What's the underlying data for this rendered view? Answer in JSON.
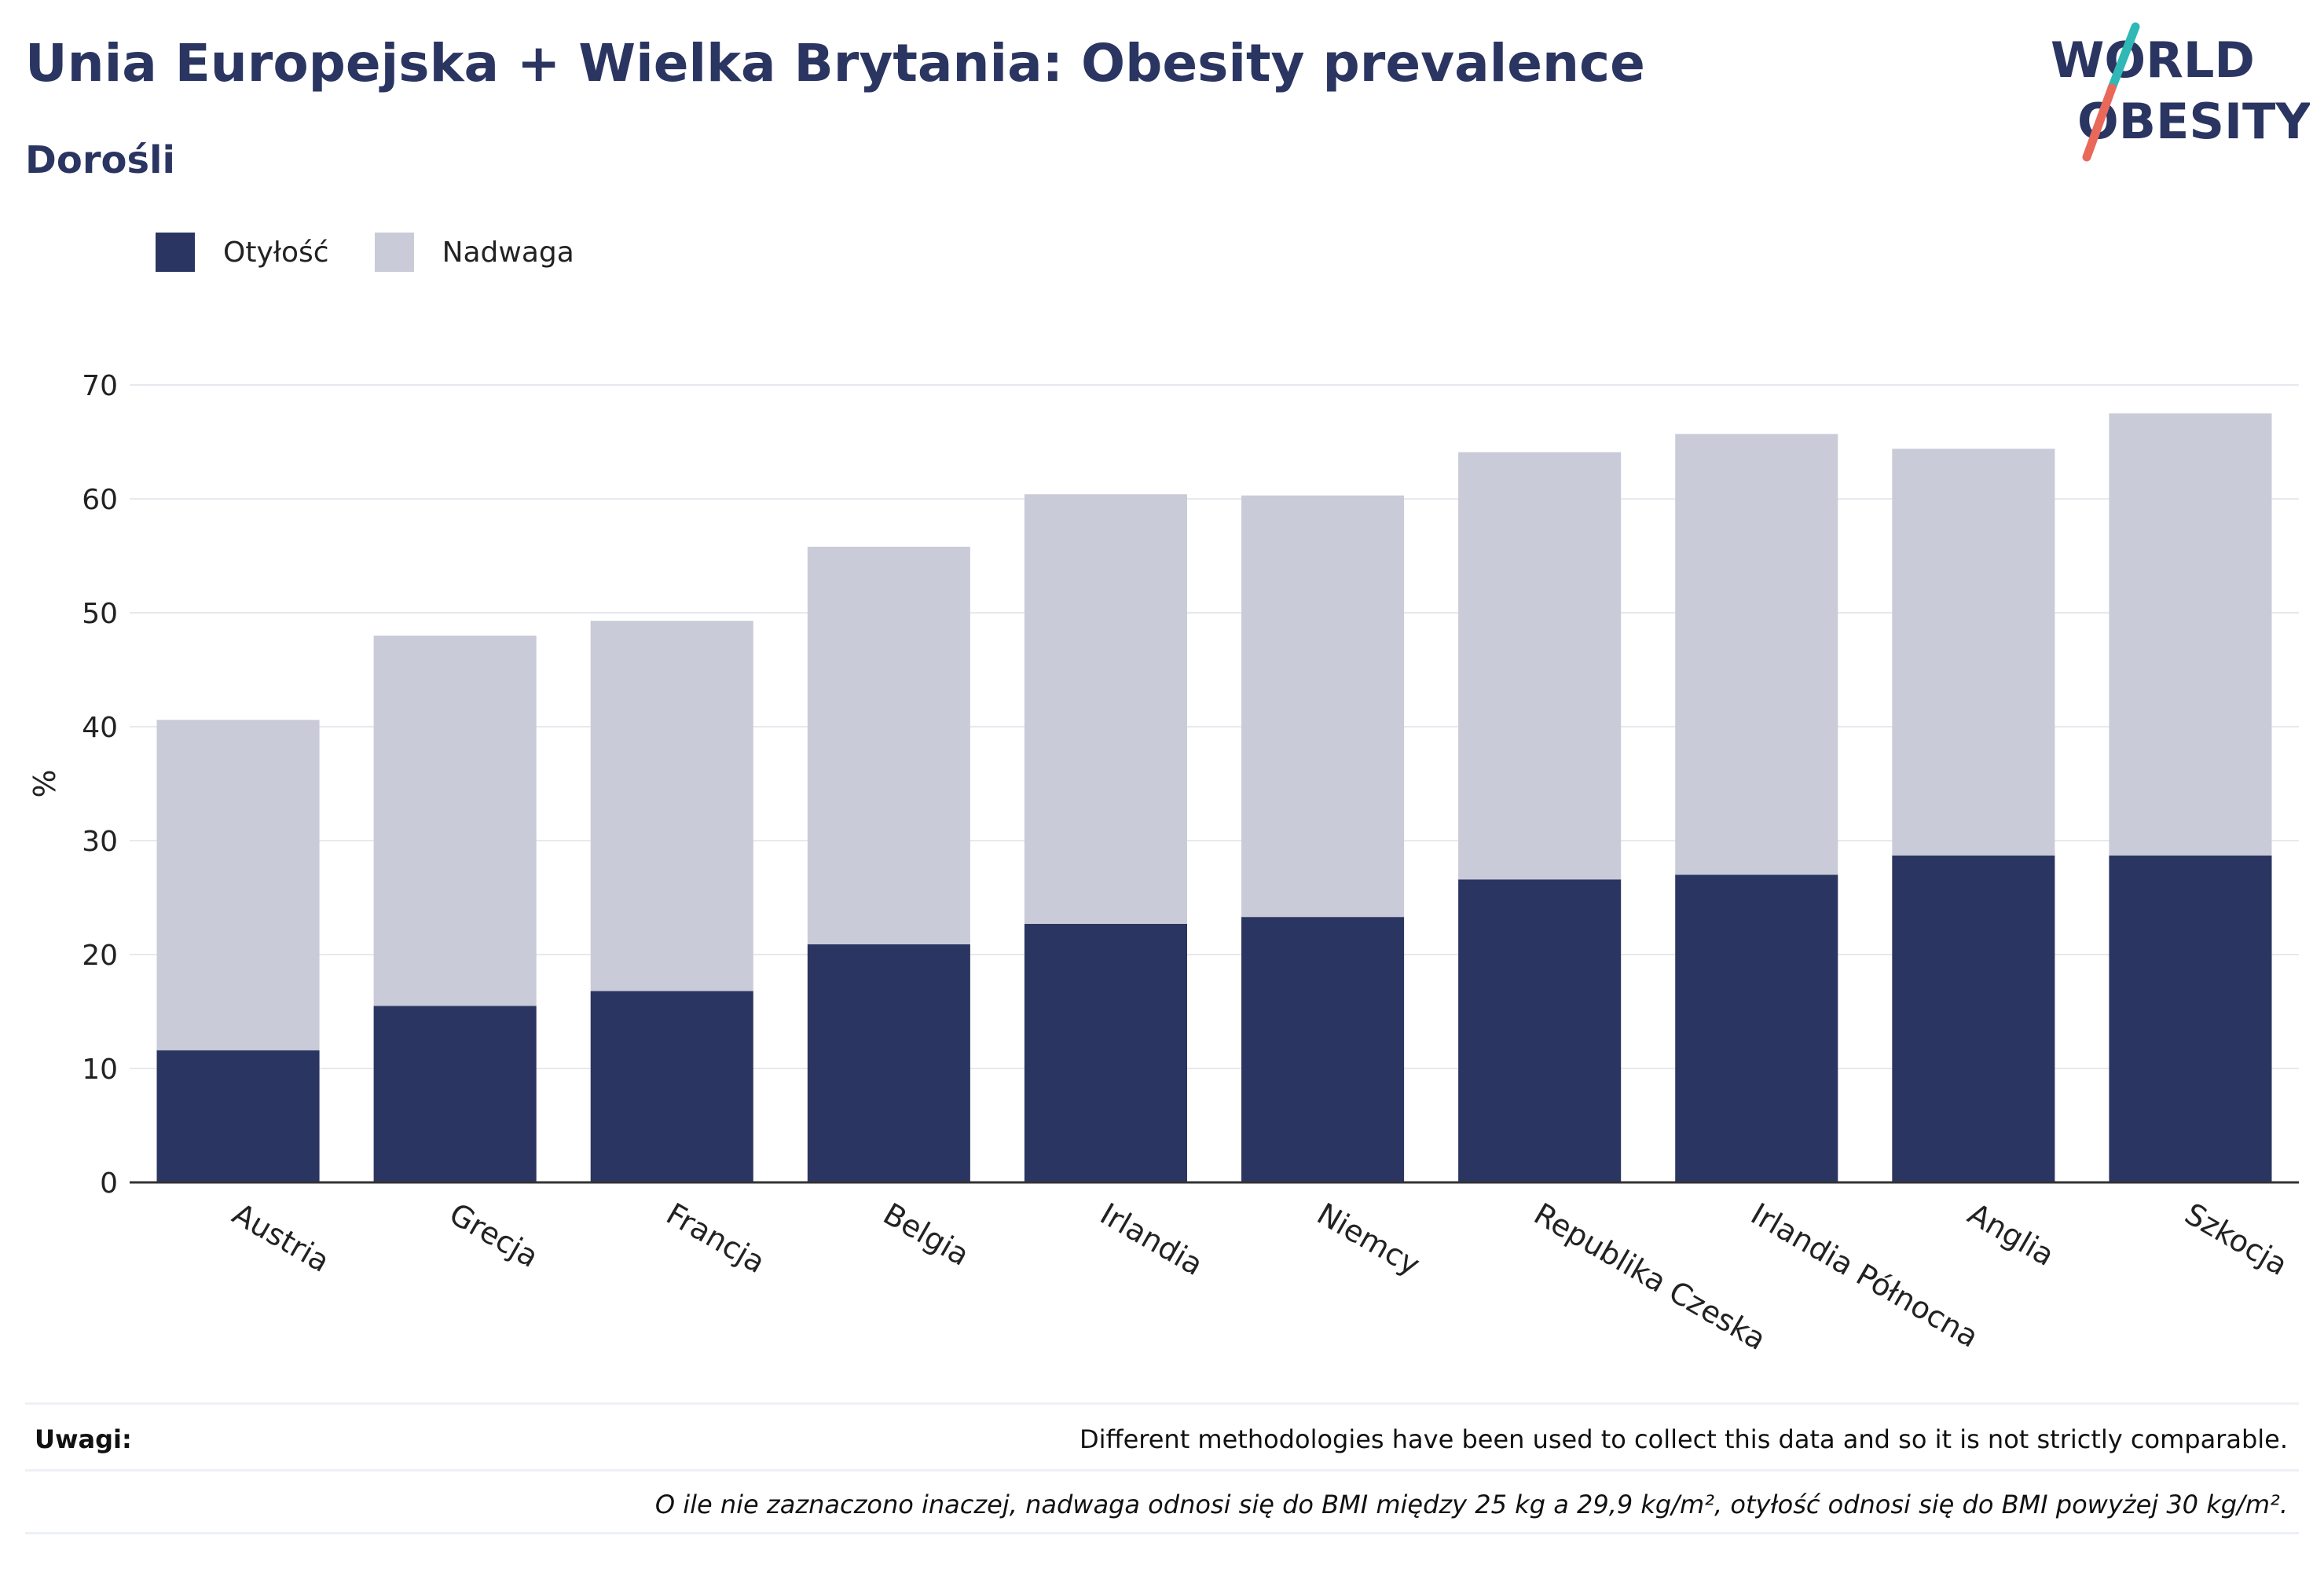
{
  "header": {
    "title": "Unia Europejska + Wielka Brytania: Obesity prevalence",
    "subtitle": "Dorośli"
  },
  "logo": {
    "line1": "WORLD",
    "line2": "OBESITY",
    "colors": {
      "text": "#2b3561",
      "slash_top": "#2fb8b5",
      "slash_bottom": "#e8695a"
    }
  },
  "colors": {
    "obesity": "#2b3561",
    "overweight": "#cacbd8",
    "grid": "#e8e9ef",
    "axis": "#333333"
  },
  "chart_data": {
    "type": "bar",
    "stacked": true,
    "ylabel": "%",
    "ylim": [
      0,
      70
    ],
    "yticks": [
      0,
      10,
      20,
      30,
      40,
      50,
      60,
      70
    ],
    "grid": true,
    "legend_position": "top-left",
    "categories": [
      "Austria",
      "Grecja",
      "Francja",
      "Belgia",
      "Irlandia",
      "Niemcy",
      "Republika Czeska",
      "Irlandia Północna",
      "Anglia",
      "Szkocja"
    ],
    "series": [
      {
        "name": "Otyłość",
        "values": [
          11.6,
          15.5,
          16.8,
          20.9,
          22.7,
          23.3,
          26.6,
          27.0,
          28.7,
          28.7
        ]
      },
      {
        "name": "Nadwaga",
        "values": [
          29.0,
          32.5,
          32.5,
          34.9,
          37.7,
          37.0,
          37.5,
          38.7,
          35.7,
          38.8
        ]
      }
    ]
  },
  "notes": {
    "label": "Uwagi:",
    "line1": "Different methodologies have been used to collect this data and so it is not strictly comparable.",
    "line2": "O ile nie zaznaczono inaczej, nadwaga odnosi się do BMI między 25 kg a 29,9 kg/m², otyłość odnosi się do BMI powyżej 30 kg/m²."
  }
}
